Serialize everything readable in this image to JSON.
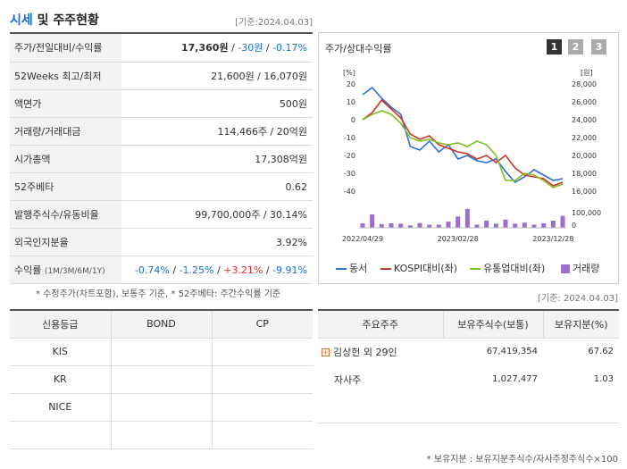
{
  "header": {
    "title_a": "시세",
    "title_b": " 및 주주현황",
    "base_date": "[기준:2024.04.03]"
  },
  "stats": [
    {
      "label": "주가/전일대비/수익률",
      "parts": [
        {
          "t": "17,360원",
          "c": "b"
        },
        {
          "t": " / ",
          "c": ""
        },
        {
          "t": "-30원",
          "c": "neg"
        },
        {
          "t": " / ",
          "c": ""
        },
        {
          "t": "-0.17%",
          "c": "neg"
        }
      ]
    },
    {
      "label": "52Weeks 최고/최저",
      "value": "21,600원 / 16,070원"
    },
    {
      "label": "액면가",
      "value": "500원"
    },
    {
      "label": "거래량/거래대금",
      "value": "114,466주 / 20억원"
    },
    {
      "label": "시가총액",
      "value": "17,308억원"
    },
    {
      "label": "52주베타",
      "value": "0.62"
    },
    {
      "label": "발행주식수/유동비율",
      "value": "99,700,000주 / 30.14%"
    },
    {
      "label": "외국인지분율",
      "value": "3.92%"
    },
    {
      "label": "수익률",
      "label_small": "(1M/3M/6M/1Y)",
      "parts": [
        {
          "t": "-0.74%",
          "c": "neg"
        },
        {
          "t": " / ",
          "c": ""
        },
        {
          "t": "-1.25%",
          "c": "neg"
        },
        {
          "t": " / ",
          "c": ""
        },
        {
          "t": "+3.21%",
          "c": "pos"
        },
        {
          "t": " / ",
          "c": ""
        },
        {
          "t": "-9.91%",
          "c": "neg"
        }
      ]
    }
  ],
  "stats_note": "* 수정주가(차트포함), 보통주 기준, * 52주베타: 주간수익률 기준",
  "chart_panel": {
    "title": "주가/상대수익률",
    "pages": [
      "1",
      "2",
      "3"
    ]
  },
  "chart_data": {
    "type": "line",
    "left_axis": {
      "label": "[%]",
      "ticks": [
        20,
        10,
        0,
        -10,
        -20,
        -30,
        -40
      ],
      "range": [
        -40,
        20
      ]
    },
    "right_axis": {
      "label": "[원]",
      "ticks": [
        28000,
        26000,
        24000,
        22000,
        20000,
        18000,
        16000
      ],
      "range": [
        16000,
        28000
      ]
    },
    "volume_axis": {
      "ticks": [
        "100,000",
        "0"
      ],
      "max": 100000
    },
    "x_ticks": [
      "2022/04/29",
      "2023/02/28",
      "2023/12/28"
    ],
    "n_points": 22,
    "series": [
      {
        "name": "동서",
        "color": "#2b6fdc",
        "values": [
          14,
          18,
          12,
          7,
          3,
          -15,
          -17,
          -12,
          -18,
          -14,
          -22,
          -20,
          -23,
          -24,
          -22,
          -29,
          -35,
          -32,
          -28,
          -31,
          -34,
          -33
        ]
      },
      {
        "name": "KOSPI대비(좌)",
        "color": "#d0342c",
        "values": [
          0,
          4,
          11,
          6,
          1,
          -8,
          -11,
          -9,
          -14,
          -16,
          -18,
          -19,
          -22,
          -20,
          -24,
          -20,
          -27,
          -31,
          -32,
          -33,
          -37,
          -35
        ]
      },
      {
        "name": "유통업대비(좌)",
        "color": "#7fbf1f",
        "values": [
          0,
          3,
          5,
          3,
          -2,
          -10,
          -12,
          -11,
          -13,
          -14,
          -13,
          -15,
          -12,
          -14,
          -20,
          -34,
          -34,
          -30,
          -31,
          -34,
          -38,
          -36
        ]
      }
    ],
    "volume": {
      "name": "거래량",
      "color": "#9b6fcf",
      "values": [
        22000,
        65000,
        18000,
        22000,
        20000,
        12000,
        23000,
        15000,
        15000,
        30000,
        55000,
        92000,
        15000,
        35000,
        20000,
        40000,
        20000,
        25000,
        15000,
        22000,
        35000,
        58000
      ]
    }
  },
  "base_date2": "[기준: 2024.04.03]",
  "credit": {
    "headers": [
      "신용등급",
      "BOND",
      "CP"
    ],
    "rows": [
      [
        "KIS",
        "",
        ""
      ],
      [
        "KR",
        "",
        ""
      ],
      [
        "NICE",
        "",
        ""
      ],
      [
        "",
        "",
        ""
      ]
    ]
  },
  "holders": {
    "headers": [
      "주요주주",
      "보유주식수(보통)",
      "보유지분(%)"
    ],
    "rows": [
      {
        "name": "김상헌 외 29인",
        "shares": "67,419,354",
        "pct": "67.62",
        "expand": "+"
      },
      {
        "name": "자사주",
        "shares": "1,027,477",
        "pct": "1.03"
      }
    ]
  },
  "holders_note": "* 보유지분 : 보유지분주식수/자사주정주식수×100"
}
